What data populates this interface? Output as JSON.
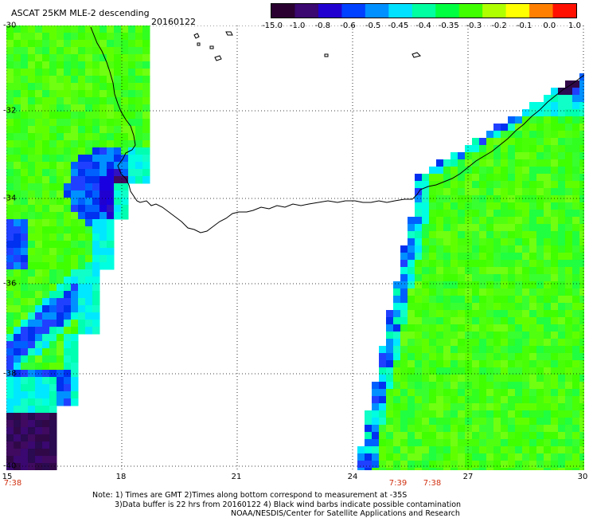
{
  "title": "ASCAT 25KM MLE-2 descending",
  "date": "20160122",
  "colorbar": {
    "labels": [
      "-15.0",
      "-1.0",
      "-0.8",
      "-0.6",
      "-0.5",
      "-0.45",
      "-0.4",
      "-0.35",
      "-0.3",
      "-0.2",
      "-0.1",
      "0.0",
      "1.0"
    ],
    "colors": [
      "#2a0030",
      "#3a0870",
      "#2000d0",
      "#0040ff",
      "#0090ff",
      "#00e0ff",
      "#00ffa0",
      "#00ff40",
      "#40ff00",
      "#b0ff00",
      "#ffff00",
      "#ff8000",
      "#ff1000"
    ]
  },
  "latitude_labels": [
    "-30",
    "-32",
    "-34",
    "-36",
    "-38",
    "-40"
  ],
  "longitude_labels": [
    "15",
    "18",
    "21",
    "24",
    "27",
    "30"
  ],
  "time_labels": [
    "7:38",
    "7:39",
    "7:38"
  ],
  "notes": [
    "Note: 1) Times are GMT 2)Times along bottom correspond to measurement at -35S",
    "3)Data buffer is 22 hrs from 20160122 4) Black wind barbs indicate possible contamination",
    "NOAA/NESDIS/Center for Satellite Applications and Research"
  ]
}
